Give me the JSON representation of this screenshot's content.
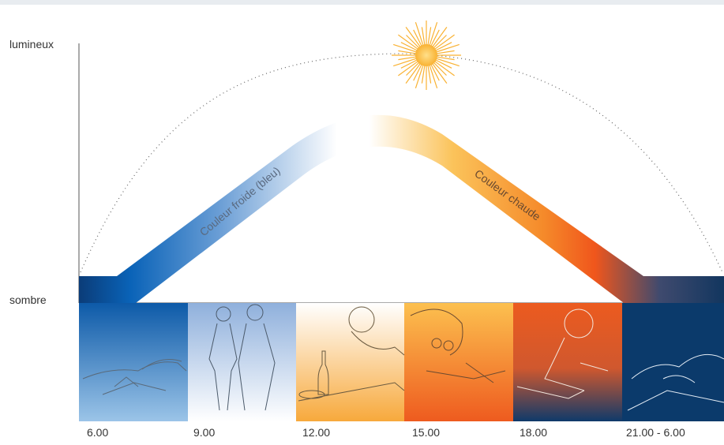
{
  "labels": {
    "y_top": "lumineux",
    "y_bottom": "sombre",
    "cold": "Couleur froide (bleu)",
    "warm": "Couleur chaude"
  },
  "times": [
    "6.00",
    "9.00",
    "12.00",
    "15.00",
    "18.00",
    "21.00 - 6.00"
  ],
  "panels": [
    {
      "scene": "sleeping-in-bed",
      "colors": [
        "#0d5aa8",
        "#9bc4e8"
      ]
    },
    {
      "scene": "walking-couple",
      "colors": [
        "#8fb0dc",
        "#ffffff"
      ]
    },
    {
      "scene": "lunch-table",
      "colors": [
        "#ffffff",
        "#f7a93c"
      ]
    },
    {
      "scene": "reading-with-glasses",
      "colors": [
        "#fcc04f",
        "#ee5b1f"
      ]
    },
    {
      "scene": "writing-at-desk",
      "colors": [
        "#ec5b1f",
        "#0f3a6a"
      ]
    },
    {
      "scene": "sleeping-at-night",
      "colors": [
        "#0b3a6b",
        "#0b3a6b"
      ]
    }
  ],
  "colors": {
    "cold_blue": "#0a63b8",
    "warm_orange": "#f0561c",
    "warm_yellow": "#fbbd4a",
    "night_navy": "#12365f",
    "sun": "#f9b233"
  },
  "icons": {
    "sun": "sun-icon"
  }
}
